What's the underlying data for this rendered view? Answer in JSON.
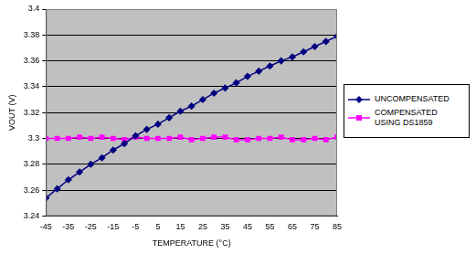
{
  "chart_data": {
    "type": "line",
    "x_label": "TEMPERATURE (°C)",
    "y_label": "VOUT (V)",
    "x": [
      -45,
      -40,
      -35,
      -30,
      -25,
      -20,
      -15,
      -10,
      -5,
      0,
      5,
      10,
      15,
      20,
      25,
      30,
      35,
      40,
      45,
      50,
      55,
      60,
      65,
      70,
      75,
      80,
      85
    ],
    "series": [
      {
        "name": "UNCOMPENSATED",
        "color": "#000080",
        "marker": "diamond",
        "line_style": "solid",
        "values": [
          3.254,
          3.261,
          3.268,
          3.274,
          3.28,
          3.285,
          3.291,
          3.296,
          3.302,
          3.307,
          3.311,
          3.316,
          3.321,
          3.325,
          3.33,
          3.335,
          3.339,
          3.343,
          3.348,
          3.352,
          3.356,
          3.36,
          3.363,
          3.367,
          3.371,
          3.375,
          3.379
        ]
      },
      {
        "name": "COMPENSATED USING DS1859",
        "color": "#ff00ff",
        "marker": "square",
        "line_style": "solid",
        "values": [
          3.3,
          3.3,
          3.3,
          3.301,
          3.3,
          3.301,
          3.3,
          3.299,
          3.301,
          3.3,
          3.3,
          3.3,
          3.301,
          3.299,
          3.3,
          3.301,
          3.301,
          3.299,
          3.299,
          3.3,
          3.3,
          3.301,
          3.299,
          3.299,
          3.3,
          3.299,
          3.301
        ]
      }
    ],
    "xlim": [
      -45,
      85
    ],
    "xticks": [
      -45,
      -35,
      -25,
      -15,
      -5,
      5,
      15,
      25,
      35,
      45,
      55,
      65,
      75,
      85
    ],
    "ylim": [
      3.24,
      3.4
    ],
    "yticks": [
      3.24,
      3.26,
      3.28,
      3.3,
      3.32,
      3.34,
      3.36,
      3.38,
      3.4
    ],
    "grid": true,
    "legend": "right"
  }
}
